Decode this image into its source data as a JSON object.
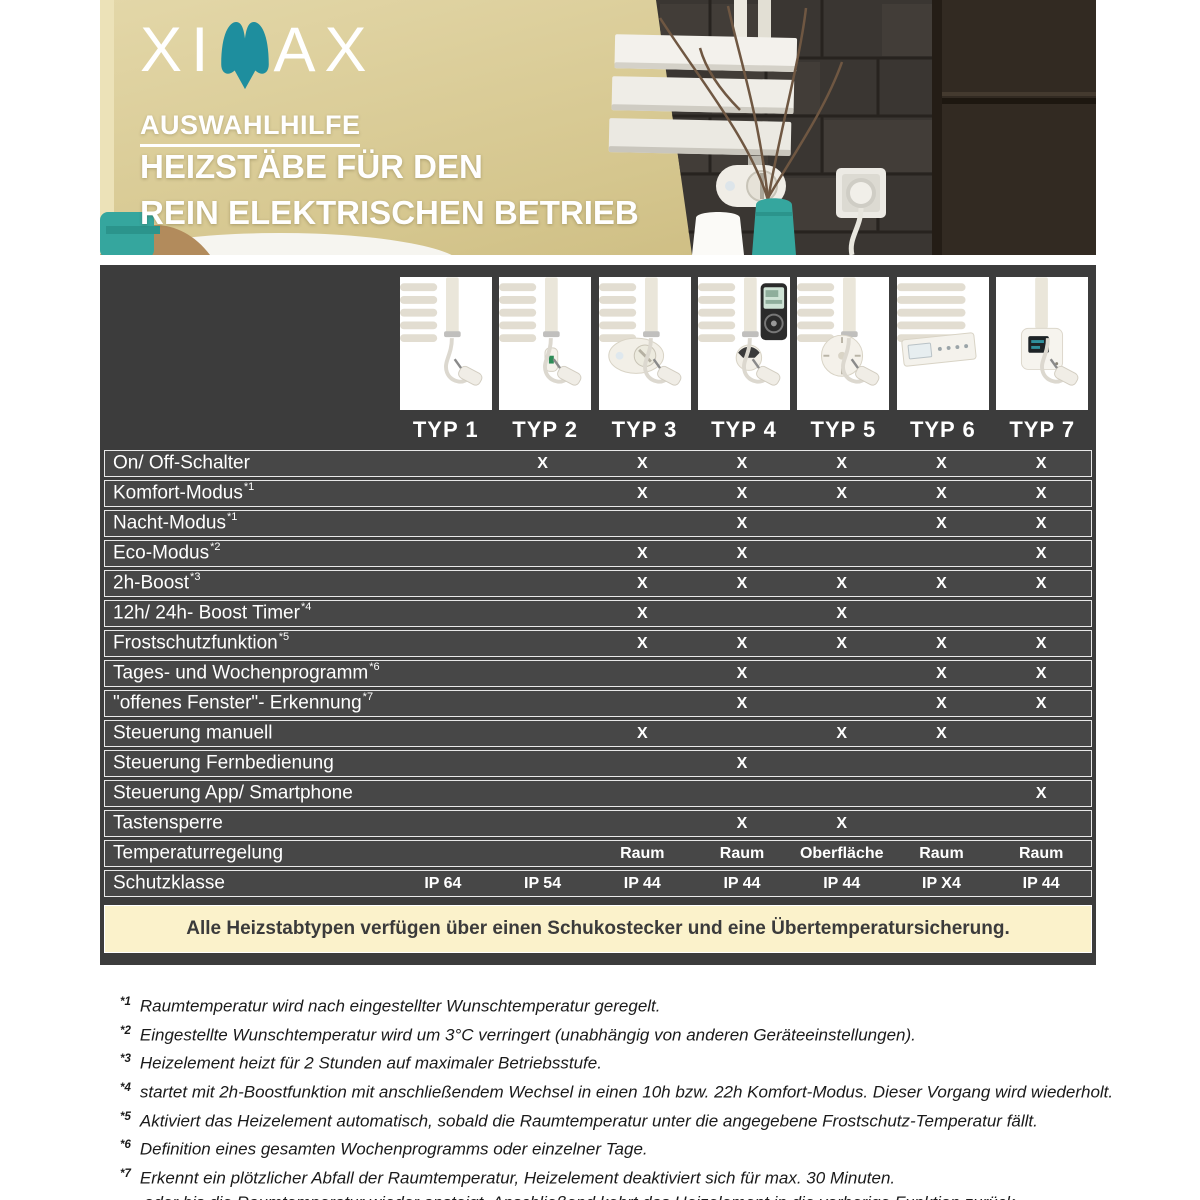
{
  "brand": {
    "logo_prefix": "XI",
    "logo_suffix": "AX",
    "teal": "#1e8e9e"
  },
  "hero": {
    "subtitle": "AUSWAHLHILFE",
    "title_line1": "HEIZSTÄBE FÜR DEN",
    "title_line2": "REIN ELEKTRISCHEN BETRIEB"
  },
  "table": {
    "panel_color": "#3c3c3c",
    "row_color": "#474747",
    "note_bg": "#fbf2cb",
    "columns": [
      {
        "label": "TYP 1",
        "image": "radiator-heating-rod-plain-cable"
      },
      {
        "label": "TYP 2",
        "image": "radiator-heating-rod-inline-switch"
      },
      {
        "label": "TYP 3",
        "image": "radiator-heating-rod-dial-controller"
      },
      {
        "label": "TYP 4",
        "image": "radiator-heating-rod-remote-control"
      },
      {
        "label": "TYP 5",
        "image": "radiator-heating-rod-thermostat-knob"
      },
      {
        "label": "TYP 6",
        "image": "radiator-heating-rod-control-panel"
      },
      {
        "label": "TYP 7",
        "image": "radiator-heating-rod-smart-box"
      }
    ],
    "rows": [
      {
        "label": "On/ Off-Schalter",
        "sup": "",
        "values": [
          "",
          "X",
          "X",
          "X",
          "X",
          "X",
          "X"
        ]
      },
      {
        "label": "Komfort-Modus",
        "sup": "*1",
        "values": [
          "",
          "",
          "X",
          "X",
          "X",
          "X",
          "X"
        ]
      },
      {
        "label": "Nacht-Modus",
        "sup": "*1",
        "values": [
          "",
          "",
          "",
          "X",
          "",
          "X",
          "X"
        ]
      },
      {
        "label": "Eco-Modus",
        "sup": "*2",
        "values": [
          "",
          "",
          "X",
          "X",
          "",
          "",
          "X"
        ]
      },
      {
        "label": "2h-Boost",
        "sup": "*3",
        "values": [
          "",
          "",
          "X",
          "X",
          "X",
          "X",
          "X"
        ]
      },
      {
        "label": "12h/ 24h- Boost Timer",
        "sup": "*4",
        "values": [
          "",
          "",
          "X",
          "",
          "X",
          "",
          ""
        ]
      },
      {
        "label": "Frostschutzfunktion",
        "sup": "*5",
        "values": [
          "",
          "",
          "X",
          "X",
          "X",
          "X",
          "X"
        ]
      },
      {
        "label": "Tages- und Wochenprogramm",
        "sup": "*6",
        "values": [
          "",
          "",
          "",
          "X",
          "",
          "X",
          "X"
        ]
      },
      {
        "label": "\"offenes Fenster\"- Erkennung",
        "sup": "*7",
        "values": [
          "",
          "",
          "",
          "X",
          "",
          "X",
          "X"
        ]
      },
      {
        "label": "Steuerung manuell",
        "sup": "",
        "values": [
          "",
          "",
          "X",
          "",
          "X",
          "X",
          ""
        ]
      },
      {
        "label": "Steuerung Fernbedienung",
        "sup": "",
        "values": [
          "",
          "",
          "",
          "X",
          "",
          "",
          ""
        ]
      },
      {
        "label": "Steuerung App/ Smartphone",
        "sup": "",
        "values": [
          "",
          "",
          "",
          "",
          "",
          "",
          "X"
        ]
      },
      {
        "label": "Tastensperre",
        "sup": "",
        "values": [
          "",
          "",
          "",
          "X",
          "X",
          "",
          ""
        ]
      },
      {
        "label": "Temperaturregelung",
        "sup": "",
        "values": [
          "",
          "",
          "Raum",
          "Raum",
          "Oberfläche",
          "Raum",
          "Raum"
        ]
      },
      {
        "label": "Schutzklasse",
        "sup": "",
        "values": [
          "IP 64",
          "IP 54",
          "IP 44",
          "IP 44",
          "IP 44",
          "IP X4",
          "IP 44"
        ]
      }
    ],
    "footer_note": "Alle Heizstabtypen verfügen über einen Schukostecker und eine Übertemperatursicherung."
  },
  "footnotes": [
    {
      "sup": "*1",
      "text": "Raumtemperatur wird nach eingestellter Wunschtemperatur geregelt."
    },
    {
      "sup": "*2",
      "text": "Eingestellte Wunschtemperatur wird um 3°C verringert (unabhängig von anderen Geräteeinstellungen)."
    },
    {
      "sup": "*3",
      "text": "Heizelement heizt für 2 Stunden auf maximaler Betriebsstufe."
    },
    {
      "sup": "*4",
      "text": "startet mit 2h-Boostfunktion mit anschließendem Wechsel in einen 10h bzw. 22h Komfort-Modus. Dieser Vorgang wird wiederholt."
    },
    {
      "sup": "*5",
      "text": "Aktiviert das Heizelement automatisch, sobald die Raumtemperatur unter die angegebene Frostschutz-Temperatur fällt."
    },
    {
      "sup": "*6",
      "text": "Definition eines gesamten Wochenprogramms oder einzelner Tage."
    },
    {
      "sup": "*7",
      "text": "Erkennt ein plötzlicher Abfall der Raumtemperatur, Heizelement deaktiviert sich für max. 30 Minuten.",
      "text2": "oder bis die Raumtemperatur wieder ansteigt. Anschließend kehrt das Heizelement in die vorherige Funktion zurück."
    }
  ]
}
